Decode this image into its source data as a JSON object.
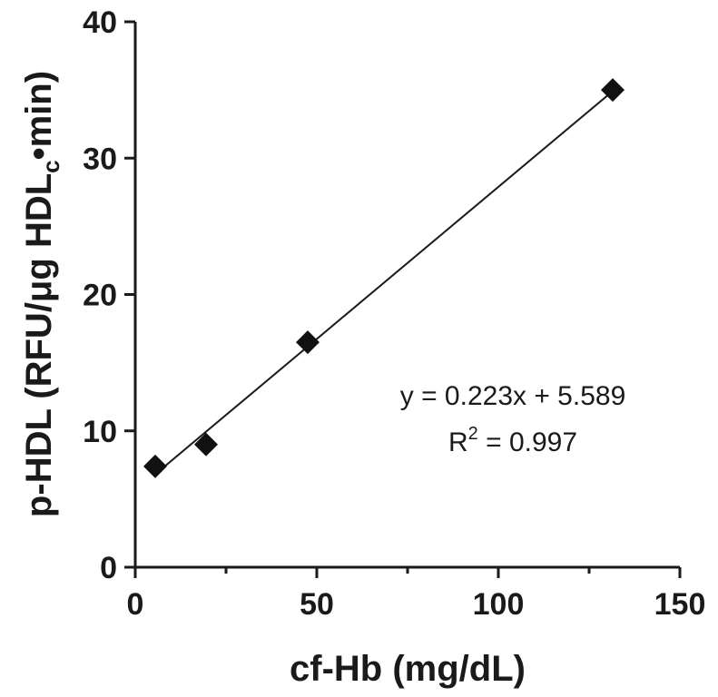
{
  "chart_data": {
    "type": "scatter",
    "xlabel": "cf-Hb (mg/dL)",
    "ylabel": {
      "main": "p-HDL (RFU/μg HDL",
      "subscript": "c",
      "suffix": "•min)"
    },
    "xlim": [
      0,
      150
    ],
    "ylim": [
      0,
      40
    ],
    "xticks": [
      0,
      50,
      100,
      150
    ],
    "xticks_minor": [
      25,
      75,
      125
    ],
    "yticks": [
      0,
      10,
      20,
      30,
      40
    ],
    "points": [
      {
        "x": 5.5,
        "y": 7.4
      },
      {
        "x": 19.5,
        "y": 9.0
      },
      {
        "x": 47.5,
        "y": 16.5
      },
      {
        "x": 131.5,
        "y": 35.0
      }
    ],
    "fit": {
      "slope": 0.223,
      "intercept": 5.589,
      "x_range": [
        5.5,
        131.5
      ]
    },
    "annotation": {
      "equation": "y = 0.223x + 5.589",
      "r_label": "R",
      "r_exponent": "2",
      "r_value": " = 0.997"
    },
    "colors": {
      "axis": "#1a1a1a",
      "marker": "#111111"
    },
    "grid": false,
    "legend": "none"
  }
}
